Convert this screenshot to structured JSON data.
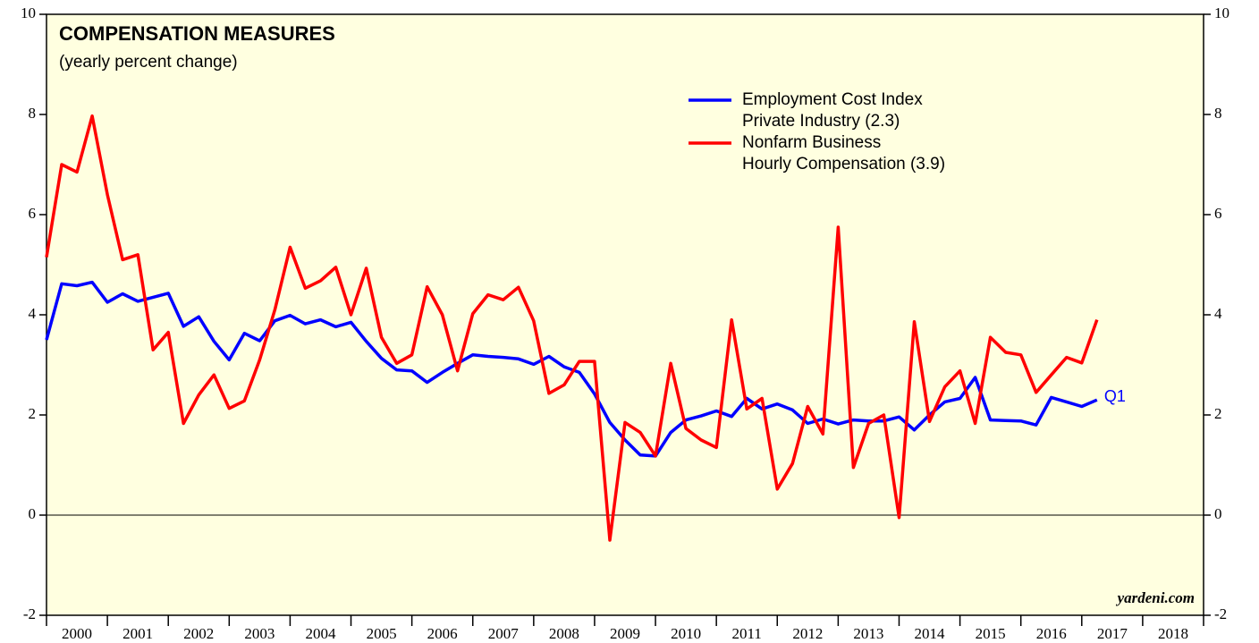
{
  "chart_data": {
    "type": "line",
    "title": "COMPENSATION MEASURES",
    "subtitle": "(yearly percent change)",
    "annotations": {
      "end_label": "Q1",
      "source": "yardeni.com"
    },
    "years": [
      "2000",
      "2001",
      "2002",
      "2003",
      "2004",
      "2005",
      "2006",
      "2007",
      "2008",
      "2009",
      "2010",
      "2011",
      "2012",
      "2013",
      "2014",
      "2015",
      "2016",
      "2017",
      "2018"
    ],
    "xlim": [
      2000,
      2019
    ],
    "xticks": [
      2000,
      2001,
      2002,
      2003,
      2004,
      2005,
      2006,
      2007,
      2008,
      2009,
      2010,
      2011,
      2012,
      2013,
      2014,
      2015,
      2016,
      2017,
      2018,
      2019
    ],
    "x": [
      2000,
      2000.25,
      2000.5,
      2000.75,
      2001,
      2001.25,
      2001.5,
      2001.75,
      2002,
      2002.25,
      2002.5,
      2002.75,
      2003,
      2003.25,
      2003.5,
      2003.75,
      2004,
      2004.25,
      2004.5,
      2004.75,
      2005,
      2005.25,
      2005.5,
      2005.75,
      2006,
      2006.25,
      2006.5,
      2006.75,
      2007,
      2007.25,
      2007.5,
      2007.75,
      2008,
      2008.25,
      2008.5,
      2008.75,
      2009,
      2009.25,
      2009.5,
      2009.75,
      2010,
      2010.25,
      2010.5,
      2010.75,
      2011,
      2011.25,
      2011.5,
      2011.75,
      2012,
      2012.25,
      2012.5,
      2012.75,
      2013,
      2013.25,
      2013.5,
      2013.75,
      2014,
      2014.25,
      2014.5,
      2014.75,
      2015,
      2015.25,
      2015.5,
      2015.75,
      2016,
      2016.25,
      2016.5,
      2016.75,
      2017,
      2017.25
    ],
    "ylim": [
      -2,
      10
    ],
    "yticks": [
      -2,
      0,
      2,
      4,
      6,
      8,
      10
    ],
    "series": [
      {
        "name": [
          "Employment Cost Index",
          "Private Industry (2.3)"
        ],
        "color": "#0000ff",
        "values": [
          3.5,
          4.62,
          4.58,
          4.65,
          4.25,
          4.42,
          4.27,
          4.35,
          4.43,
          3.77,
          3.96,
          3.47,
          3.1,
          3.63,
          3.48,
          3.88,
          3.99,
          3.82,
          3.9,
          3.76,
          3.85,
          3.47,
          3.13,
          2.9,
          2.88,
          2.65,
          2.85,
          3.03,
          3.2,
          3.17,
          3.15,
          3.12,
          3.01,
          3.17,
          2.96,
          2.85,
          2.42,
          1.85,
          1.5,
          1.2,
          1.18,
          1.65,
          1.9,
          1.98,
          2.08,
          1.97,
          2.33,
          2.12,
          2.22,
          2.1,
          1.83,
          1.92,
          1.82,
          1.9,
          1.88,
          1.88,
          1.96,
          1.7,
          2.0,
          2.26,
          2.33,
          2.75,
          1.9,
          1.89,
          1.88,
          1.8,
          2.35,
          2.26,
          2.17,
          2.3
        ]
      },
      {
        "name": [
          "Nonfarm Business",
          "Hourly Compensation (3.9)"
        ],
        "color": "#ff0000",
        "values": [
          5.15,
          7.0,
          6.85,
          7.97,
          6.4,
          5.1,
          5.2,
          3.3,
          3.65,
          1.83,
          2.4,
          2.8,
          2.13,
          2.28,
          3.1,
          4.1,
          5.35,
          4.53,
          4.68,
          4.95,
          4.0,
          4.93,
          3.55,
          3.03,
          3.2,
          4.56,
          4.0,
          2.88,
          4.02,
          4.4,
          4.3,
          4.55,
          3.88,
          2.43,
          2.6,
          3.07,
          3.07,
          -0.5,
          1.85,
          1.65,
          1.18,
          3.03,
          1.73,
          1.5,
          1.35,
          3.9,
          2.12,
          2.33,
          0.52,
          1.03,
          2.17,
          1.62,
          5.75,
          0.95,
          1.83,
          2.0,
          -0.05,
          3.86,
          1.87,
          2.56,
          2.88,
          1.83,
          3.55,
          3.25,
          3.2,
          2.45,
          2.8,
          3.15,
          3.04,
          3.9
        ]
      }
    ]
  }
}
